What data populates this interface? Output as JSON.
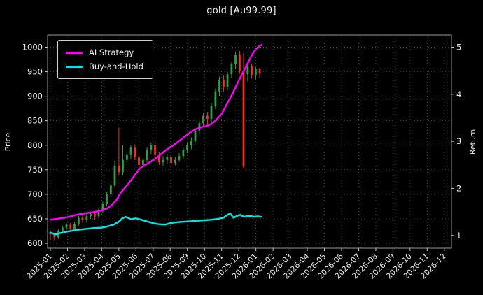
{
  "colors": {
    "background": "#000000",
    "ai": "#ff00ff",
    "bh": "#00e5e5",
    "up": "#2f9e44",
    "down": "#ef3228",
    "grid": "#888888",
    "spine": "#999999",
    "text": "#e8e8e8"
  },
  "chart_data": {
    "type": "candlestick+line",
    "title": "gold [Au99.99]",
    "legend_position": "upper left",
    "grid": "dotted",
    "x_axis": {
      "unit": "month index from 2025-01",
      "range": [
        -0.2,
        23.4
      ],
      "tick_labels": [
        "2025-01",
        "2025-02",
        "2025-03",
        "2025-04",
        "2025-05",
        "2025-06",
        "2025-07",
        "2025-08",
        "2025-09",
        "2025-10",
        "2025-11",
        "2025-12",
        "2026-01",
        "2026-02",
        "2026-03",
        "2026-04",
        "2026-05",
        "2026-06",
        "2026-07",
        "2026-08",
        "2026-09",
        "2026-10",
        "2026-11",
        "2026-12"
      ]
    },
    "left_axis": {
      "label": "Price",
      "ticks": [
        600,
        650,
        700,
        750,
        800,
        850,
        900,
        950,
        1000
      ],
      "range": [
        590,
        1025
      ]
    },
    "right_axis": {
      "label": "Return",
      "ticks": [
        1,
        2,
        3,
        4,
        5
      ],
      "price_at_return_1": 616,
      "price_per_return_unit": 96
    },
    "candles_format": [
      "t_month",
      "open",
      "high",
      "low",
      "close"
    ],
    "candles": [
      [
        0.0,
        620,
        626,
        607,
        618
      ],
      [
        0.24,
        618,
        622,
        605,
        612
      ],
      [
        0.47,
        612,
        628,
        609,
        625
      ],
      [
        0.71,
        625,
        636,
        620,
        632
      ],
      [
        0.94,
        632,
        641,
        627,
        638
      ],
      [
        1.18,
        638,
        642,
        624,
        630
      ],
      [
        1.41,
        630,
        644,
        626,
        640
      ],
      [
        1.65,
        640,
        656,
        636,
        652
      ],
      [
        1.88,
        652,
        658,
        642,
        648
      ],
      [
        2.12,
        648,
        660,
        644,
        655
      ],
      [
        2.35,
        655,
        664,
        650,
        660
      ],
      [
        2.59,
        660,
        663,
        648,
        655
      ],
      [
        2.82,
        655,
        672,
        652,
        668
      ],
      [
        3.06,
        668,
        685,
        662,
        680
      ],
      [
        3.29,
        680,
        704,
        676,
        700
      ],
      [
        3.53,
        700,
        726,
        694,
        718
      ],
      [
        3.76,
        718,
        768,
        714,
        758
      ],
      [
        4.0,
        758,
        835,
        738,
        745
      ],
      [
        4.23,
        745,
        800,
        738,
        770
      ],
      [
        4.47,
        770,
        786,
        758,
        780
      ],
      [
        4.7,
        780,
        800,
        772,
        795
      ],
      [
        4.94,
        795,
        802,
        770,
        775
      ],
      [
        5.17,
        775,
        782,
        754,
        760
      ],
      [
        5.41,
        760,
        775,
        752,
        770
      ],
      [
        5.64,
        770,
        796,
        765,
        790
      ],
      [
        5.88,
        790,
        806,
        782,
        800
      ],
      [
        6.11,
        800,
        804,
        774,
        780
      ],
      [
        6.35,
        780,
        786,
        760,
        765
      ],
      [
        6.58,
        765,
        778,
        757,
        770
      ],
      [
        6.82,
        770,
        781,
        762,
        776
      ],
      [
        7.05,
        776,
        780,
        758,
        764
      ],
      [
        7.29,
        764,
        776,
        759,
        770
      ],
      [
        7.52,
        770,
        784,
        766,
        778
      ],
      [
        7.76,
        778,
        796,
        772,
        790
      ],
      [
        7.99,
        790,
        806,
        784,
        800
      ],
      [
        8.23,
        800,
        816,
        792,
        810
      ],
      [
        8.46,
        810,
        834,
        804,
        830
      ],
      [
        8.7,
        830,
        850,
        822,
        845
      ],
      [
        8.93,
        845,
        866,
        838,
        860
      ],
      [
        9.17,
        860,
        868,
        842,
        854
      ],
      [
        9.4,
        854,
        886,
        848,
        880
      ],
      [
        9.64,
        880,
        916,
        874,
        910
      ],
      [
        9.87,
        910,
        940,
        900,
        934
      ],
      [
        10.11,
        934,
        944,
        908,
        918
      ],
      [
        10.34,
        918,
        950,
        912,
        945
      ],
      [
        10.58,
        945,
        970,
        938,
        965
      ],
      [
        10.81,
        965,
        990,
        955,
        985
      ],
      [
        11.05,
        985,
        992,
        946,
        952
      ],
      [
        11.28,
        952,
        988,
        752,
        756
      ],
      [
        11.52,
        945,
        968,
        930,
        962
      ],
      [
        11.75,
        962,
        966,
        936,
        942
      ],
      [
        11.99,
        942,
        960,
        934,
        955
      ],
      [
        12.22,
        955,
        958,
        938,
        946
      ]
    ],
    "series": [
      {
        "name": "AI Strategy",
        "color_key": "ai",
        "axis": "left (price scale)",
        "points": [
          [
            0,
            648
          ],
          [
            0.4,
            650
          ],
          [
            0.8,
            652
          ],
          [
            1.2,
            655
          ],
          [
            1.5,
            658
          ],
          [
            1.8,
            660
          ],
          [
            2.2,
            662
          ],
          [
            2.6,
            664
          ],
          [
            3.0,
            667
          ],
          [
            3.3,
            671
          ],
          [
            3.6,
            678
          ],
          [
            3.9,
            690
          ],
          [
            4.1,
            703
          ],
          [
            4.4,
            715
          ],
          [
            4.7,
            728
          ],
          [
            5.0,
            742
          ],
          [
            5.2,
            752
          ],
          [
            5.5,
            759
          ],
          [
            5.8,
            765
          ],
          [
            6.1,
            772
          ],
          [
            6.4,
            780
          ],
          [
            6.7,
            789
          ],
          [
            7.0,
            796
          ],
          [
            7.3,
            803
          ],
          [
            7.6,
            811
          ],
          [
            7.9,
            819
          ],
          [
            8.2,
            827
          ],
          [
            8.5,
            833
          ],
          [
            8.8,
            837
          ],
          [
            9.1,
            839
          ],
          [
            9.4,
            843
          ],
          [
            9.7,
            852
          ],
          [
            10.0,
            864
          ],
          [
            10.2,
            877
          ],
          [
            10.4,
            890
          ],
          [
            10.6,
            903
          ],
          [
            10.8,
            917
          ],
          [
            11.0,
            932
          ],
          [
            11.2,
            946
          ],
          [
            11.4,
            959
          ],
          [
            11.6,
            973
          ],
          [
            11.8,
            986
          ],
          [
            12.0,
            996
          ],
          [
            12.2,
            1002
          ],
          [
            12.35,
            1005
          ]
        ]
      },
      {
        "name": "Buy-and-Hold",
        "color_key": "bh",
        "axis": "right (return scale)",
        "points": [
          [
            0,
            622
          ],
          [
            0.3,
            618
          ],
          [
            0.6,
            621
          ],
          [
            1.0,
            624
          ],
          [
            1.5,
            627
          ],
          [
            2.0,
            629
          ],
          [
            2.5,
            631
          ],
          [
            3.0,
            632
          ],
          [
            3.3,
            634
          ],
          [
            3.7,
            638
          ],
          [
            4.0,
            644
          ],
          [
            4.2,
            651
          ],
          [
            4.4,
            654
          ],
          [
            4.7,
            649
          ],
          [
            5.0,
            651
          ],
          [
            5.3,
            648
          ],
          [
            5.6,
            645
          ],
          [
            6.0,
            641
          ],
          [
            6.3,
            639
          ],
          [
            6.7,
            638
          ],
          [
            7.0,
            641
          ],
          [
            7.4,
            643
          ],
          [
            7.8,
            644
          ],
          [
            8.2,
            645
          ],
          [
            8.6,
            646
          ],
          [
            9.0,
            647
          ],
          [
            9.4,
            648
          ],
          [
            9.8,
            650
          ],
          [
            10.1,
            652
          ],
          [
            10.3,
            657
          ],
          [
            10.5,
            661
          ],
          [
            10.7,
            652
          ],
          [
            10.9,
            656
          ],
          [
            11.1,
            658
          ],
          [
            11.3,
            654
          ],
          [
            11.6,
            656
          ],
          [
            11.9,
            654
          ],
          [
            12.1,
            655
          ],
          [
            12.3,
            654
          ]
        ]
      }
    ]
  }
}
